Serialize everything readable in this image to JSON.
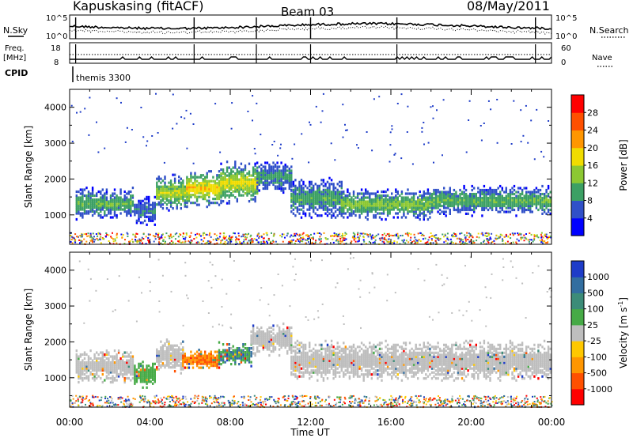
{
  "header": {
    "station": "Kapuskasing (fitACF)",
    "beam": "Beam 03",
    "date": "08/May/2011"
  },
  "status_panels": {
    "nsky_label": "N.Sky",
    "nsearch_label": "N.Search",
    "freq_label": "Freq.",
    "freq_unit": "[MHz]",
    "nave_label": "Nave",
    "cpid_label": "CPID",
    "cpid_value": "themis 3300",
    "noise_left_ticks": [
      "10^5",
      "10^0"
    ],
    "noise_right_ticks": [
      "10^5",
      "10^0"
    ],
    "freq_ticks": [
      "18",
      "8"
    ],
    "nave_ticks": [
      "60",
      "0"
    ]
  },
  "chart_data": [
    {
      "type": "heatmap",
      "name": "power-panel",
      "ylabel": "Slant Range [km]",
      "ylim": [
        180,
        4500
      ],
      "yticks": [
        1000,
        2000,
        3000,
        4000
      ],
      "xlim": [
        0,
        24
      ],
      "xtick_labels": [
        "00:00",
        "04:00",
        "08:00",
        "12:00",
        "16:00",
        "20:00",
        "00:00"
      ],
      "xlabel": "",
      "colorbar": {
        "label": "Power [dB]",
        "ticks": [
          "4",
          "8",
          "12",
          "16",
          "20",
          "24",
          "28"
        ],
        "colors": [
          "#0000ff",
          "#3050c8",
          "#3ca064",
          "#8cc832",
          "#f0dc00",
          "#ff9600",
          "#ff5000",
          "#ff0000"
        ]
      },
      "echo_bands": [
        {
          "t0": 0.3,
          "t1": 3.2,
          "r0": 950,
          "r1": 1750,
          "level": 10
        },
        {
          "t0": 3.2,
          "t1": 4.3,
          "r0": 800,
          "r1": 1500,
          "level": 6
        },
        {
          "t0": 4.3,
          "t1": 5.8,
          "r0": 1200,
          "r1": 2100,
          "level": 14
        },
        {
          "t0": 5.8,
          "t1": 7.5,
          "r0": 1300,
          "r1": 2250,
          "level": 18
        },
        {
          "t0": 7.5,
          "t1": 9.3,
          "r0": 1400,
          "r1": 2450,
          "level": 16
        },
        {
          "t0": 9.3,
          "t1": 11.0,
          "r0": 1700,
          "r1": 2500,
          "level": 8
        },
        {
          "t0": 11.0,
          "t1": 13.5,
          "r0": 1000,
          "r1": 2000,
          "level": 9
        },
        {
          "t0": 13.5,
          "t1": 18.0,
          "r0": 950,
          "r1": 1700,
          "level": 12
        },
        {
          "t0": 18.0,
          "t1": 24.0,
          "r0": 1050,
          "r1": 1800,
          "level": 10
        }
      ]
    },
    {
      "type": "heatmap",
      "name": "velocity-panel",
      "ylabel": "Slant Range [km]",
      "ylim": [
        180,
        4500
      ],
      "yticks": [
        1000,
        2000,
        3000,
        4000
      ],
      "xlim": [
        0,
        24
      ],
      "xtick_labels": [
        "00:00",
        "04:00",
        "08:00",
        "12:00",
        "16:00",
        "20:00",
        "00:00"
      ],
      "xlabel": "Time UT",
      "colorbar": {
        "label": "Velocity [m s",
        "label_sup": "-1",
        "label_end": "]",
        "ticks": [
          "1000",
          "500",
          "100",
          "25",
          "-25",
          "-100",
          "-500",
          "-1000"
        ],
        "colors": [
          "#1e3cc8",
          "#326ea0",
          "#3c8c78",
          "#46aa46",
          "#bebebe",
          "#ffc800",
          "#ff9600",
          "#ff5000",
          "#ff0000"
        ]
      },
      "echo_bands": [
        {
          "t0": 0.3,
          "t1": 3.2,
          "r0": 950,
          "r1": 1750,
          "v": 0
        },
        {
          "t0": 3.2,
          "t1": 4.3,
          "r0": 800,
          "r1": 1450,
          "v": 100
        },
        {
          "t0": 4.3,
          "t1": 5.6,
          "r0": 1200,
          "r1": 2050,
          "v": 0
        },
        {
          "t0": 5.6,
          "t1": 7.4,
          "r0": 1300,
          "r1": 1800,
          "v": -500
        },
        {
          "t0": 7.4,
          "t1": 9.0,
          "r0": 1400,
          "r1": 2000,
          "v": 500
        },
        {
          "t0": 9.0,
          "t1": 11.0,
          "r0": 1700,
          "r1": 2500,
          "v": 0
        },
        {
          "t0": 11.0,
          "t1": 24.0,
          "r0": 1000,
          "r1": 2000,
          "v": 0
        }
      ]
    }
  ]
}
